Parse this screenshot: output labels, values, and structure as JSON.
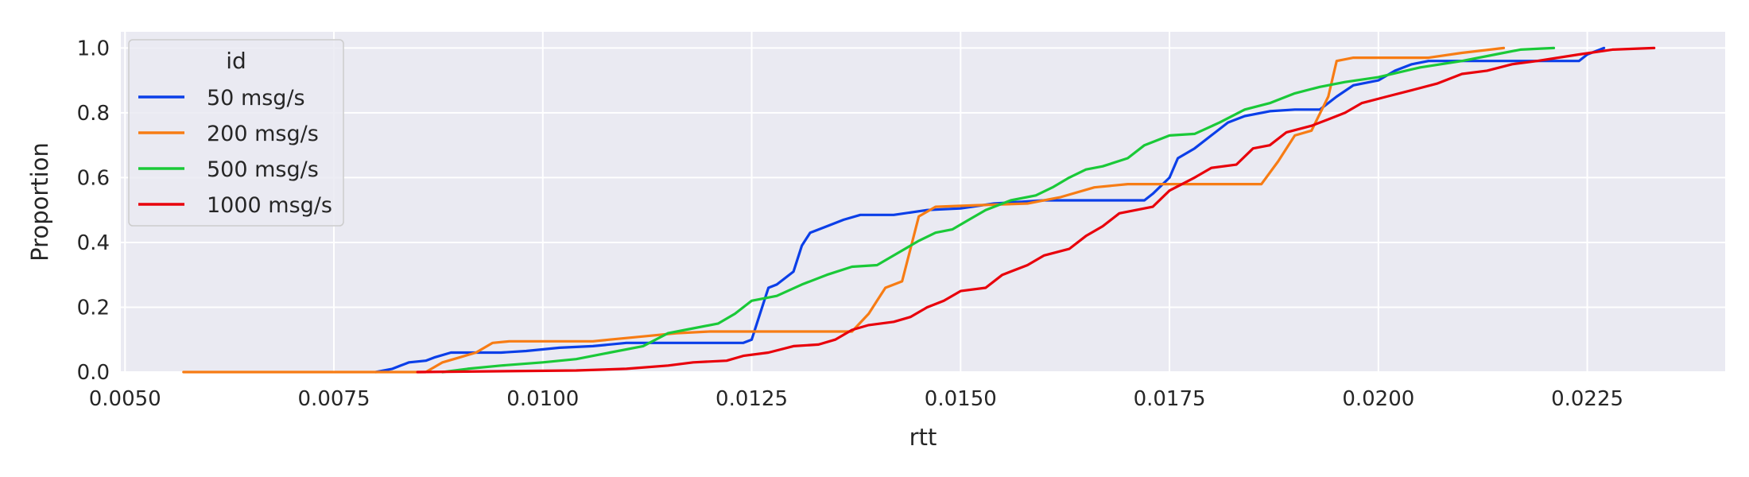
{
  "chart_data": {
    "type": "line",
    "xlabel": "rtt",
    "ylabel": "Proportion",
    "xlim": [
      0.00495,
      0.02415
    ],
    "ylim": [
      0.0,
      1.05
    ],
    "x_ticks": [
      "0.0050",
      "0.0075",
      "0.0100",
      "0.0125",
      "0.0150",
      "0.0175",
      "0.0200",
      "0.0225"
    ],
    "y_ticks": [
      "0.0",
      "0.2",
      "0.4",
      "0.6",
      "0.8",
      "1.0"
    ],
    "grid": true,
    "legend": {
      "title": "id",
      "placement": "top-left"
    },
    "series": [
      {
        "name": "50 msg/s",
        "color": "#0b3fe8",
        "points": [
          [
            0.008,
            0.0
          ],
          [
            0.0082,
            0.01
          ],
          [
            0.0083,
            0.02
          ],
          [
            0.0084,
            0.03
          ],
          [
            0.0086,
            0.035
          ],
          [
            0.0087,
            0.045
          ],
          [
            0.0089,
            0.06
          ],
          [
            0.0095,
            0.06
          ],
          [
            0.0098,
            0.065
          ],
          [
            0.0102,
            0.075
          ],
          [
            0.0106,
            0.08
          ],
          [
            0.011,
            0.09
          ],
          [
            0.0115,
            0.09
          ],
          [
            0.0124,
            0.09
          ],
          [
            0.0125,
            0.1
          ],
          [
            0.0126,
            0.18
          ],
          [
            0.0127,
            0.26
          ],
          [
            0.0128,
            0.27
          ],
          [
            0.013,
            0.31
          ],
          [
            0.0131,
            0.39
          ],
          [
            0.0132,
            0.43
          ],
          [
            0.0134,
            0.45
          ],
          [
            0.0136,
            0.47
          ],
          [
            0.0138,
            0.485
          ],
          [
            0.0142,
            0.485
          ],
          [
            0.0146,
            0.5
          ],
          [
            0.015,
            0.505
          ],
          [
            0.0154,
            0.52
          ],
          [
            0.016,
            0.53
          ],
          [
            0.0172,
            0.53
          ],
          [
            0.0173,
            0.55
          ],
          [
            0.0175,
            0.6
          ],
          [
            0.0176,
            0.66
          ],
          [
            0.0178,
            0.69
          ],
          [
            0.018,
            0.73
          ],
          [
            0.0182,
            0.77
          ],
          [
            0.0184,
            0.79
          ],
          [
            0.0187,
            0.805
          ],
          [
            0.019,
            0.81
          ],
          [
            0.0193,
            0.81
          ],
          [
            0.0195,
            0.85
          ],
          [
            0.0197,
            0.885
          ],
          [
            0.02,
            0.9
          ],
          [
            0.0202,
            0.93
          ],
          [
            0.0204,
            0.95
          ],
          [
            0.0206,
            0.96
          ],
          [
            0.0224,
            0.96
          ],
          [
            0.0225,
            0.98
          ],
          [
            0.0227,
            1.0
          ]
        ]
      },
      {
        "name": "200 msg/s",
        "color": "#f77c14",
        "points": [
          [
            0.0057,
            0.0
          ],
          [
            0.0086,
            0.0
          ],
          [
            0.0088,
            0.03
          ],
          [
            0.009,
            0.045
          ],
          [
            0.0092,
            0.06
          ],
          [
            0.0094,
            0.09
          ],
          [
            0.0096,
            0.095
          ],
          [
            0.0106,
            0.095
          ],
          [
            0.0108,
            0.1
          ],
          [
            0.0112,
            0.11
          ],
          [
            0.0116,
            0.12
          ],
          [
            0.012,
            0.125
          ],
          [
            0.0137,
            0.125
          ],
          [
            0.0139,
            0.18
          ],
          [
            0.014,
            0.22
          ],
          [
            0.0141,
            0.26
          ],
          [
            0.0143,
            0.28
          ],
          [
            0.0144,
            0.38
          ],
          [
            0.0145,
            0.48
          ],
          [
            0.0147,
            0.51
          ],
          [
            0.0152,
            0.515
          ],
          [
            0.0158,
            0.52
          ],
          [
            0.0162,
            0.54
          ],
          [
            0.0166,
            0.57
          ],
          [
            0.017,
            0.58
          ],
          [
            0.0186,
            0.58
          ],
          [
            0.0188,
            0.65
          ],
          [
            0.019,
            0.73
          ],
          [
            0.0192,
            0.745
          ],
          [
            0.0194,
            0.85
          ],
          [
            0.0195,
            0.96
          ],
          [
            0.0197,
            0.97
          ],
          [
            0.0206,
            0.97
          ],
          [
            0.021,
            0.985
          ],
          [
            0.0215,
            1.0
          ]
        ]
      },
      {
        "name": "500 msg/s",
        "color": "#1ac938",
        "points": [
          [
            0.0088,
            0.0
          ],
          [
            0.0091,
            0.01
          ],
          [
            0.0095,
            0.02
          ],
          [
            0.01,
            0.03
          ],
          [
            0.0104,
            0.04
          ],
          [
            0.0108,
            0.06
          ],
          [
            0.0112,
            0.08
          ],
          [
            0.0115,
            0.12
          ],
          [
            0.0118,
            0.135
          ],
          [
            0.0121,
            0.15
          ],
          [
            0.0123,
            0.18
          ],
          [
            0.0125,
            0.22
          ],
          [
            0.0128,
            0.235
          ],
          [
            0.0131,
            0.27
          ],
          [
            0.0134,
            0.3
          ],
          [
            0.0137,
            0.325
          ],
          [
            0.014,
            0.33
          ],
          [
            0.0142,
            0.36
          ],
          [
            0.0145,
            0.405
          ],
          [
            0.0147,
            0.43
          ],
          [
            0.0149,
            0.44
          ],
          [
            0.0151,
            0.47
          ],
          [
            0.0153,
            0.5
          ],
          [
            0.0156,
            0.53
          ],
          [
            0.0159,
            0.545
          ],
          [
            0.0161,
            0.57
          ],
          [
            0.0163,
            0.6
          ],
          [
            0.0165,
            0.625
          ],
          [
            0.0167,
            0.635
          ],
          [
            0.017,
            0.66
          ],
          [
            0.0172,
            0.7
          ],
          [
            0.0175,
            0.73
          ],
          [
            0.0178,
            0.735
          ],
          [
            0.0181,
            0.77
          ],
          [
            0.0184,
            0.81
          ],
          [
            0.0187,
            0.83
          ],
          [
            0.019,
            0.86
          ],
          [
            0.0193,
            0.88
          ],
          [
            0.0196,
            0.895
          ],
          [
            0.02,
            0.91
          ],
          [
            0.0205,
            0.94
          ],
          [
            0.021,
            0.96
          ],
          [
            0.0214,
            0.98
          ],
          [
            0.0217,
            0.995
          ],
          [
            0.0221,
            1.0
          ]
        ]
      },
      {
        "name": "1000 msg/s",
        "color": "#e8000b",
        "points": [
          [
            0.0085,
            0.0
          ],
          [
            0.0104,
            0.005
          ],
          [
            0.011,
            0.01
          ],
          [
            0.0115,
            0.02
          ],
          [
            0.0118,
            0.03
          ],
          [
            0.0122,
            0.035
          ],
          [
            0.0124,
            0.05
          ],
          [
            0.0127,
            0.06
          ],
          [
            0.013,
            0.08
          ],
          [
            0.0133,
            0.085
          ],
          [
            0.0135,
            0.1
          ],
          [
            0.0137,
            0.13
          ],
          [
            0.0139,
            0.145
          ],
          [
            0.0142,
            0.155
          ],
          [
            0.0144,
            0.17
          ],
          [
            0.0146,
            0.2
          ],
          [
            0.0148,
            0.22
          ],
          [
            0.015,
            0.25
          ],
          [
            0.0153,
            0.26
          ],
          [
            0.0155,
            0.3
          ],
          [
            0.0158,
            0.33
          ],
          [
            0.016,
            0.36
          ],
          [
            0.0163,
            0.38
          ],
          [
            0.0165,
            0.42
          ],
          [
            0.0167,
            0.45
          ],
          [
            0.0169,
            0.49
          ],
          [
            0.0173,
            0.51
          ],
          [
            0.0175,
            0.56
          ],
          [
            0.0178,
            0.6
          ],
          [
            0.018,
            0.63
          ],
          [
            0.0183,
            0.64
          ],
          [
            0.0185,
            0.69
          ],
          [
            0.0187,
            0.7
          ],
          [
            0.0189,
            0.74
          ],
          [
            0.0192,
            0.76
          ],
          [
            0.0194,
            0.78
          ],
          [
            0.0196,
            0.8
          ],
          [
            0.0198,
            0.83
          ],
          [
            0.0201,
            0.85
          ],
          [
            0.0204,
            0.87
          ],
          [
            0.0207,
            0.89
          ],
          [
            0.021,
            0.92
          ],
          [
            0.0213,
            0.93
          ],
          [
            0.0216,
            0.95
          ],
          [
            0.0219,
            0.96
          ],
          [
            0.0224,
            0.98
          ],
          [
            0.0228,
            0.995
          ],
          [
            0.0233,
            1.0
          ]
        ]
      }
    ]
  }
}
